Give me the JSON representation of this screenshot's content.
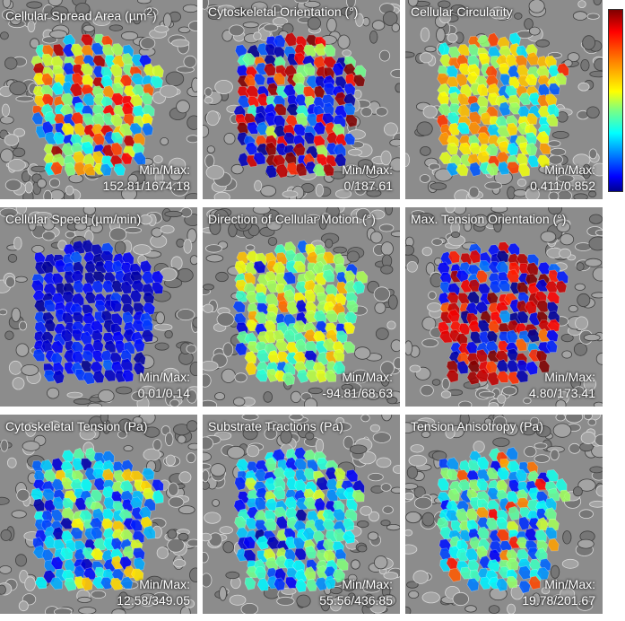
{
  "figure": {
    "panels": [
      {
        "title_html": "Cellular Spread Area (µm<sup>2</sup>)",
        "title": "Cellular Spread Area (µm²)",
        "minmax_label": "Min/Max:",
        "minmax_value": "152.81/1674.18",
        "palette": "spread"
      },
      {
        "title": "Cytoskeletal Orientation (°)",
        "minmax_label": "Min/Max:",
        "minmax_value": "0/187.61",
        "palette": "orient"
      },
      {
        "title": "Cellular Circularity",
        "minmax_label": "Min/Max:",
        "minmax_value": "0.411/0.852",
        "palette": "circ"
      },
      {
        "title": "Cellular Speed (µm/min)",
        "minmax_label": "Min/Max:",
        "minmax_value": "0.01/0.14",
        "palette": "speed"
      },
      {
        "title": "Direction of Cellular Motion (°)",
        "minmax_label": "Min/Max:",
        "minmax_value": "-94.81/68.63",
        "palette": "direction"
      },
      {
        "title": "Max. Tension Orientation (°)",
        "minmax_label": "Min/Max:",
        "minmax_value": "4.80/173.41",
        "palette": "maxtension"
      },
      {
        "title": "Cytoskeletal Tension (Pa)",
        "minmax_label": "Min/Max:",
        "minmax_value": "12.58/349.05",
        "palette": "tension"
      },
      {
        "title": "Substrate Tractions (Pa)",
        "minmax_label": "Min/Max:",
        "minmax_value": "55.56/436.85",
        "palette": "traction"
      },
      {
        "title": "Tension Anisotropy (Pa)",
        "minmax_label": "Min/Max:",
        "minmax_value": "19.78/201.67",
        "palette": "aniso"
      }
    ],
    "colorbar": {
      "colors": [
        "#7f0000",
        "#ff0000",
        "#ff7f00",
        "#ffff00",
        "#7fff7f",
        "#00ffff",
        "#007fff",
        "#0000ff",
        "#00008f"
      ]
    }
  }
}
